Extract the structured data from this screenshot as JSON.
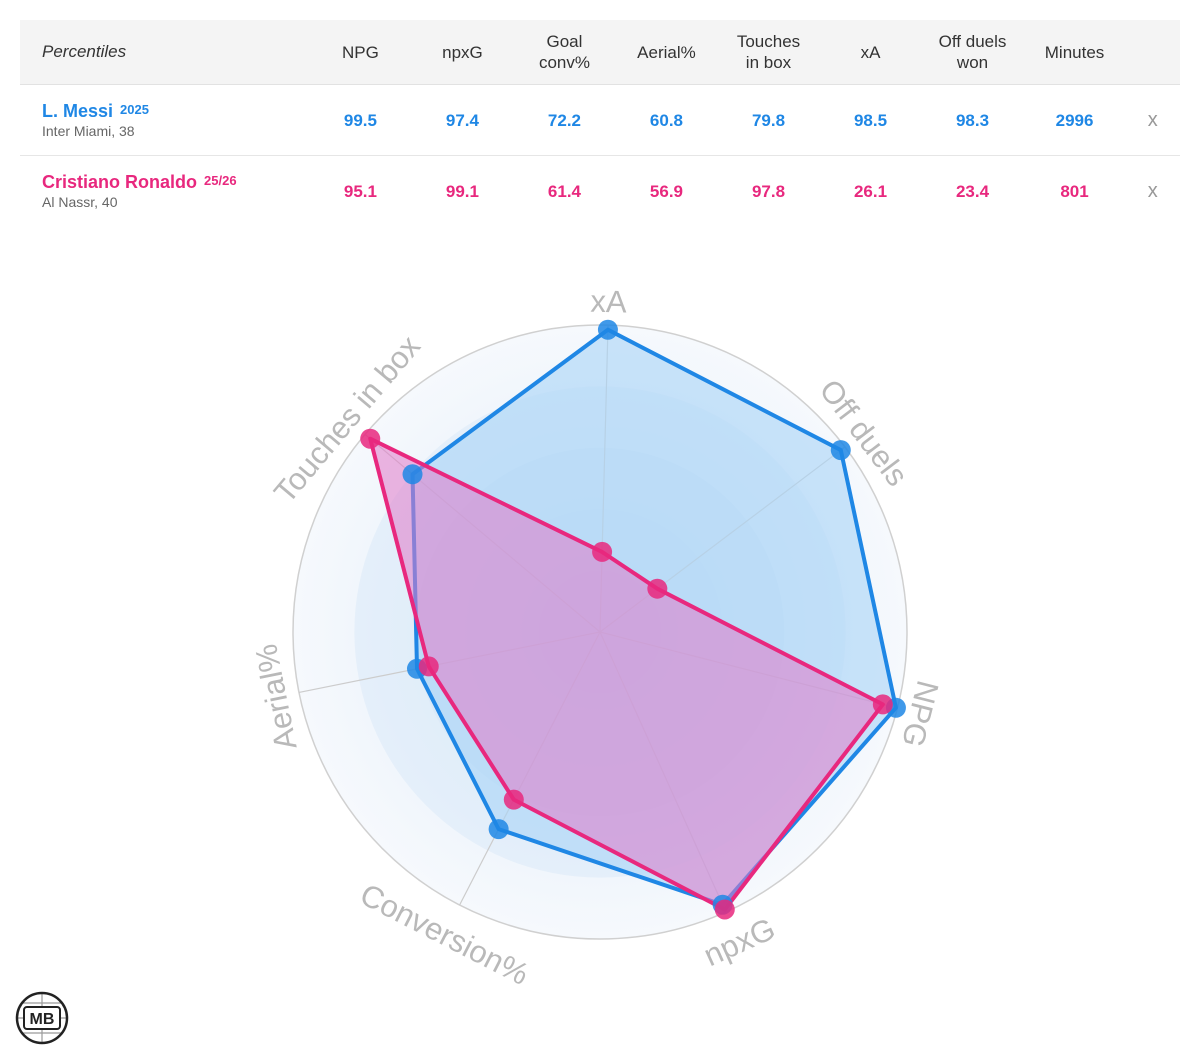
{
  "table": {
    "header_label": "Percentiles",
    "columns": [
      {
        "line1": "NPG",
        "line2": ""
      },
      {
        "line1": "npxG",
        "line2": ""
      },
      {
        "line1": "Goal",
        "line2": "conv%"
      },
      {
        "line1": "Aerial%",
        "line2": ""
      },
      {
        "line1": "Touches",
        "line2": "in box"
      },
      {
        "line1": "xA",
        "line2": ""
      },
      {
        "line1": "Off duels",
        "line2": "won"
      },
      {
        "line1": "Minutes",
        "line2": ""
      }
    ],
    "remove_label": "x",
    "players": [
      {
        "name": "L. Messi",
        "season": "2025",
        "info": "Inter Miami, 38",
        "color": "#1f87e5",
        "values": [
          "99.5",
          "97.4",
          "72.2",
          "60.8",
          "79.8",
          "98.5",
          "98.3",
          "2996"
        ]
      },
      {
        "name": "Cristiano Ronaldo",
        "season": "25/26",
        "info": "Al Nassr, 40",
        "color": "#e8287e",
        "values": [
          "95.1",
          "99.1",
          "61.4",
          "56.9",
          "97.8",
          "26.1",
          "23.4",
          "801"
        ]
      }
    ]
  },
  "chart_data": {
    "type": "radar",
    "axes": [
      "xA",
      "Off duels",
      "NPG",
      "npxG",
      "Conversion%",
      "Aerial%",
      "Touches in box"
    ],
    "range": [
      0,
      100
    ],
    "rings": 5,
    "series": [
      {
        "name": "L. Messi",
        "color": "#1f87e5",
        "fill": "#a9d3f7",
        "values": [
          98.5,
          98.3,
          99.5,
          97.4,
          72.2,
          60.8,
          79.8
        ]
      },
      {
        "name": "Cristiano Ronaldo",
        "color": "#e8287e",
        "fill": "#e07ac8",
        "values": [
          26.1,
          23.4,
          95.1,
          99.1,
          61.4,
          56.9,
          97.8
        ]
      }
    ]
  },
  "logo": {
    "text": "MB"
  }
}
